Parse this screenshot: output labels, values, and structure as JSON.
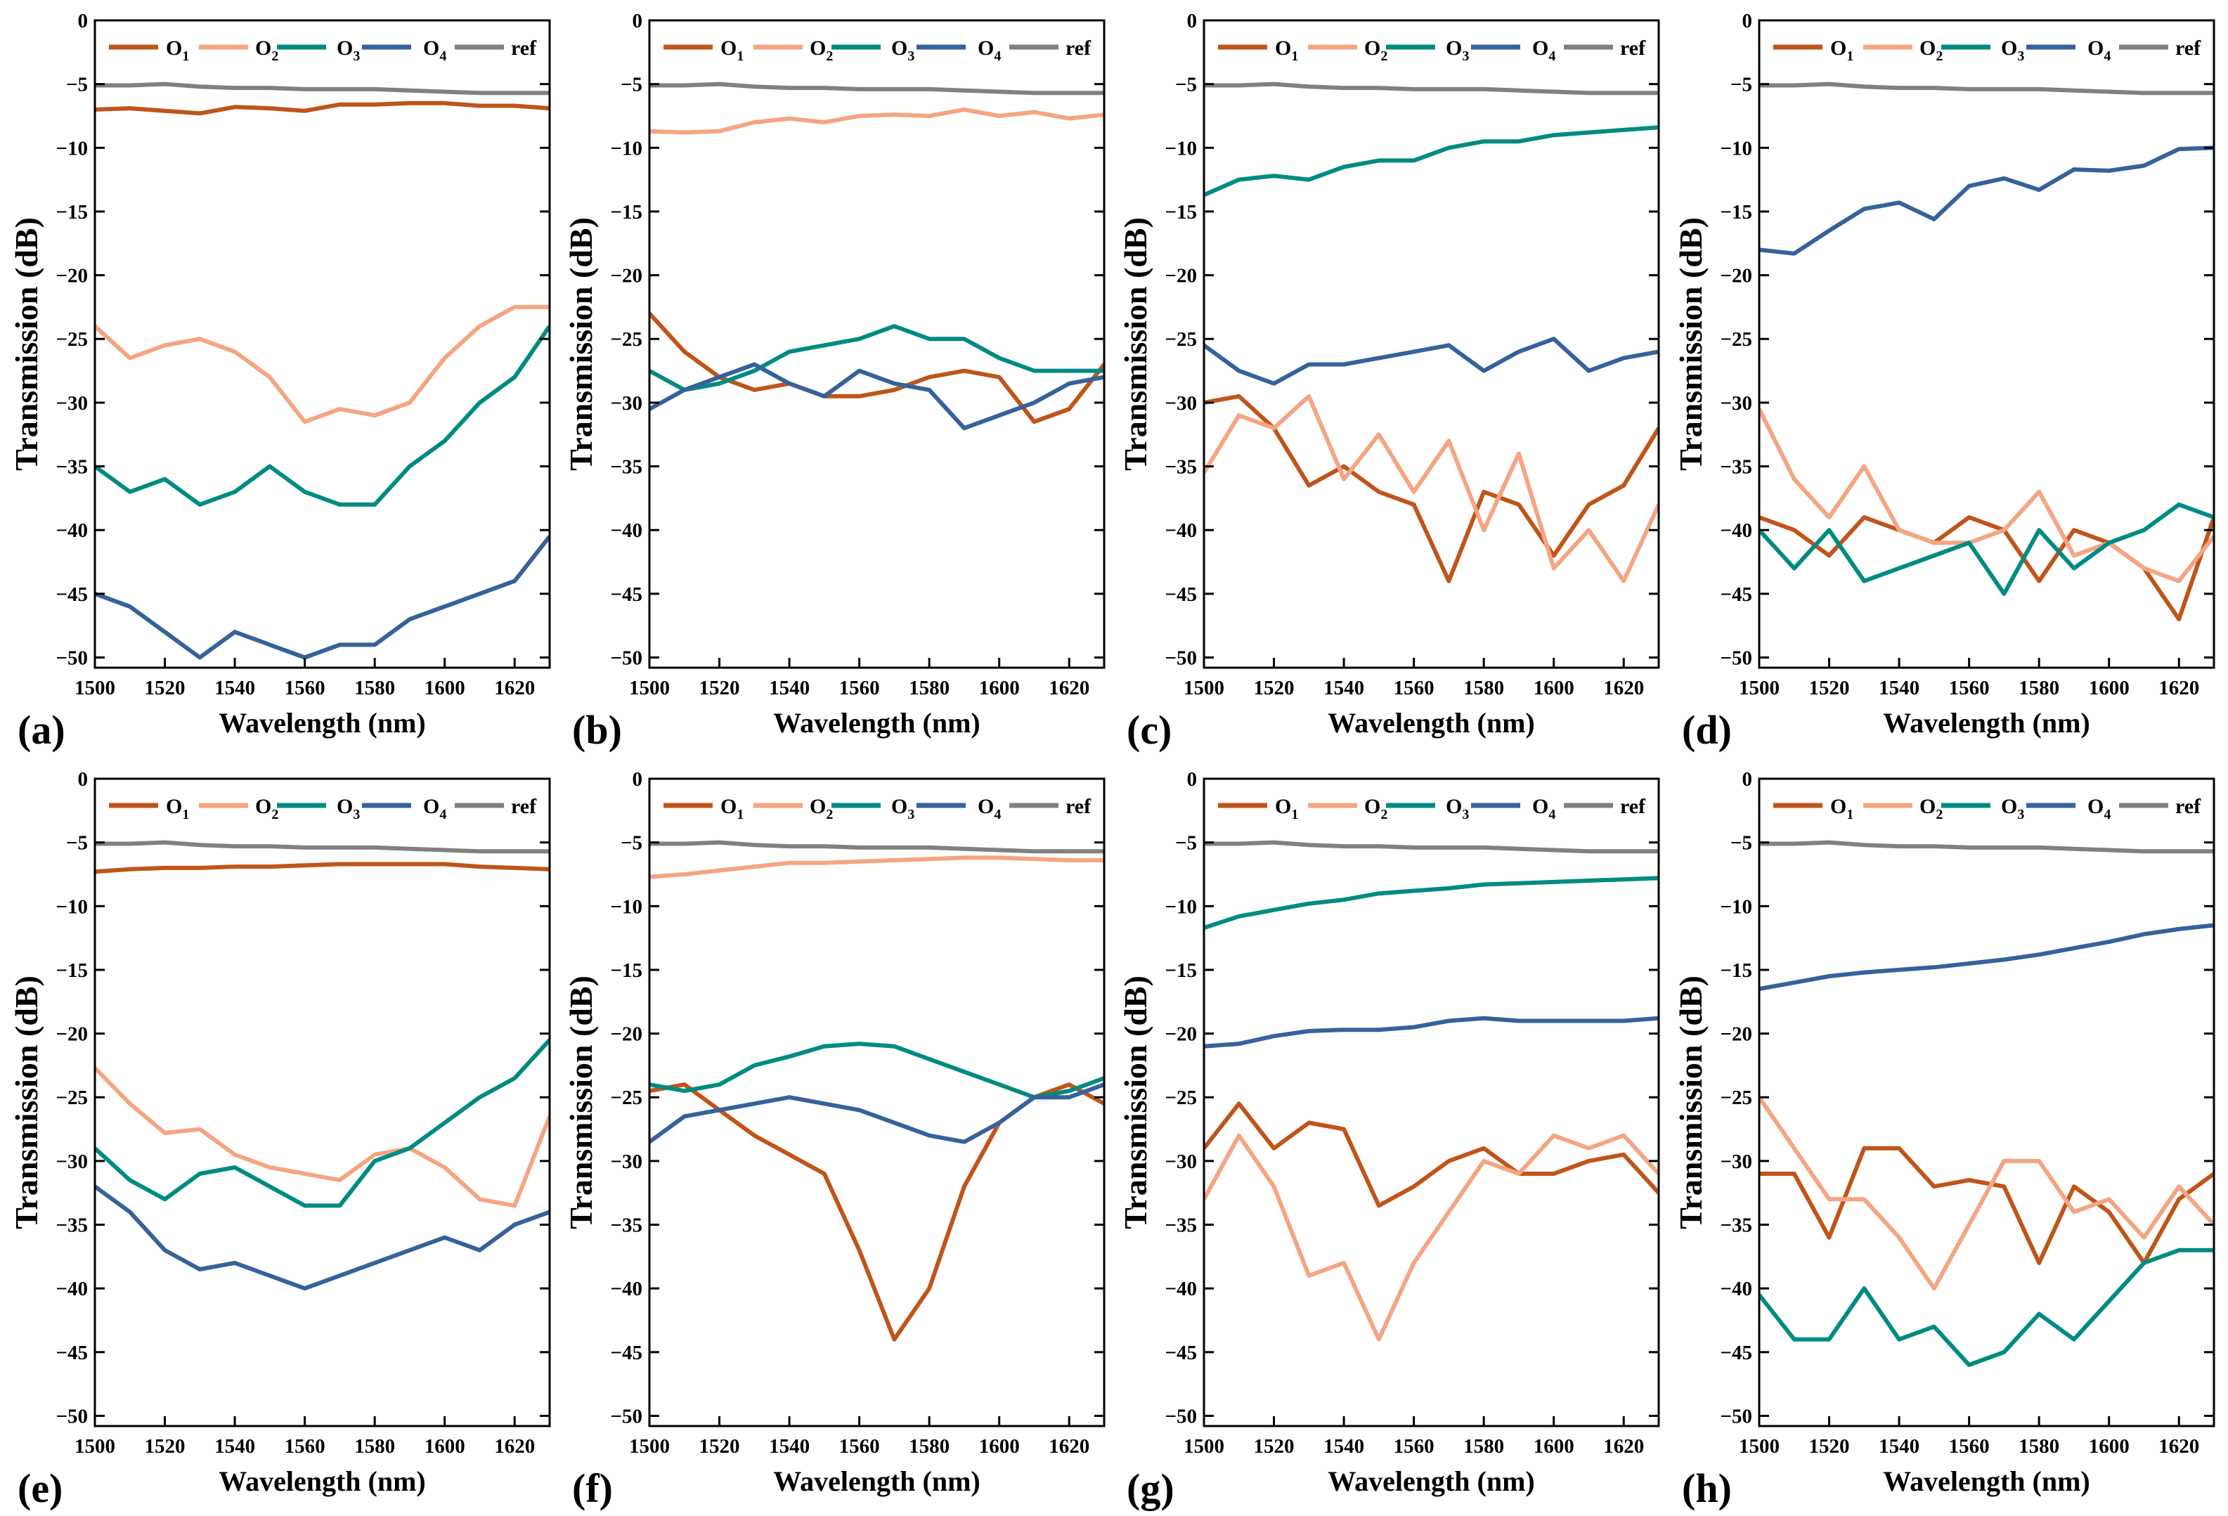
{
  "chart_data": {
    "type": "line",
    "layout": "2x4 grid",
    "shared": {
      "x": [
        1500,
        1510,
        1520,
        1530,
        1540,
        1550,
        1560,
        1570,
        1580,
        1590,
        1600,
        1610,
        1620,
        1630
      ],
      "xlabel": "Wavelength (nm)",
      "ylabel": "Transmission (dB)",
      "xlim": [
        1500,
        1630
      ],
      "ylim": [
        -50.8,
        0
      ],
      "xticks": [
        1500,
        1520,
        1540,
        1560,
        1580,
        1600,
        1620
      ],
      "yticks": [
        0,
        -5,
        -10,
        -15,
        -20,
        -25,
        -30,
        -35,
        -40,
        -45,
        -50
      ],
      "legend_placement": "top",
      "legend": [
        {
          "key": "O1",
          "base": "O",
          "sub": "1",
          "color": "#C0541A"
        },
        {
          "key": "O2",
          "base": "O",
          "sub": "2",
          "color": "#F4A582"
        },
        {
          "key": "O3",
          "base": "O",
          "sub": "3",
          "color": "#008B82"
        },
        {
          "key": "O4",
          "base": "O",
          "sub": "4",
          "color": "#35629A"
        },
        {
          "key": "ref",
          "base": "ref",
          "sub": "",
          "color": "#808080"
        }
      ],
      "ref": [
        -5.1,
        -5.1,
        -5.0,
        -5.2,
        -5.3,
        -5.3,
        -5.4,
        -5.4,
        -5.4,
        -5.5,
        -5.6,
        -5.7,
        -5.7,
        -5.7
      ]
    },
    "panels": [
      {
        "label": "(a)",
        "series": {
          "O1": [
            -7,
            -6.9,
            -7.1,
            -7.3,
            -6.8,
            -6.9,
            -7.1,
            -6.6,
            -6.6,
            -6.5,
            -6.5,
            -6.7,
            -6.7,
            -6.9
          ],
          "O2": [
            -24,
            -26.5,
            -25.5,
            -25,
            -26,
            -28,
            -31.5,
            -30.5,
            -31,
            -30,
            -26.5,
            -24,
            -22.5,
            -22.5
          ],
          "O3": [
            -35,
            -37,
            -36,
            -38,
            -37,
            -35,
            -37,
            -38,
            -38,
            -35,
            -33,
            -30,
            -28,
            -24
          ],
          "O4": [
            -45,
            -46,
            -48,
            -50,
            -48,
            -49,
            -50,
            -49,
            -49,
            -47,
            -46,
            -45,
            -44,
            -40.5
          ]
        }
      },
      {
        "label": "(b)",
        "series": {
          "O1": [
            -23,
            -26,
            -28,
            -29,
            -28.5,
            -29.5,
            -29.5,
            -29,
            -28,
            -27.5,
            -28,
            -31.5,
            -30.5,
            -27
          ],
          "O2": [
            -8.7,
            -8.8,
            -8.7,
            -8,
            -7.7,
            -8,
            -7.5,
            -7.4,
            -7.5,
            -7,
            -7.5,
            -7.2,
            -7.7,
            -7.4
          ],
          "O3": [
            -27.5,
            -29,
            -28.5,
            -27.5,
            -26,
            -25.5,
            -25,
            -24,
            -25,
            -25,
            -26.5,
            -27.5,
            -27.5,
            -27.5
          ],
          "O4": [
            -30.5,
            -29,
            -28,
            -27,
            -28.5,
            -29.5,
            -27.5,
            -28.5,
            -29,
            -32,
            -31,
            -30,
            -28.5,
            -28
          ]
        }
      },
      {
        "label": "(c)",
        "series": {
          "O1": [
            -30,
            -29.5,
            -32,
            -36.5,
            -35,
            -37,
            -38,
            -44,
            -37,
            -38,
            -42,
            -38,
            -36.5,
            -32
          ],
          "O2": [
            -35.5,
            -31,
            -32,
            -29.5,
            -36,
            -32.5,
            -37,
            -33,
            -40,
            -34,
            -43,
            -40,
            -44,
            -38
          ],
          "O3": [
            -13.7,
            -12.5,
            -12.2,
            -12.5,
            -11.5,
            -11,
            -11,
            -10,
            -9.5,
            -9.5,
            -9,
            -8.8,
            -8.6,
            -8.4
          ],
          "O4": [
            -25.5,
            -27.5,
            -28.5,
            -27,
            -27,
            -26.5,
            -26,
            -25.5,
            -27.5,
            -26,
            -25,
            -27.5,
            -26.5,
            -26
          ]
        }
      },
      {
        "label": "(d)",
        "series": {
          "O1": [
            -39,
            -40,
            -42,
            -39,
            -40,
            -41,
            -39,
            -40,
            -44,
            -40,
            -41,
            -43,
            -47,
            -39
          ],
          "O2": [
            -30.5,
            -36,
            -39,
            -35,
            -40,
            -41,
            -41,
            -40,
            -37,
            -42,
            -41,
            -43,
            -44,
            -40.5
          ],
          "O3": [
            -40,
            -43,
            -40,
            -44,
            -43,
            -42,
            -41,
            -45,
            -40,
            -43,
            -41,
            -40,
            -38,
            -39
          ],
          "O4": [
            -18,
            -18.3,
            -16.5,
            -14.8,
            -14.3,
            -15.6,
            -13,
            -12.4,
            -13.3,
            -11.7,
            -11.8,
            -11.4,
            -10.1,
            -10
          ]
        }
      },
      {
        "label": "(e)",
        "series": {
          "O1": [
            -7.3,
            -7.1,
            -7,
            -7,
            -6.9,
            -6.9,
            -6.8,
            -6.7,
            -6.7,
            -6.7,
            -6.7,
            -6.9,
            -7,
            -7.1
          ],
          "O2": [
            -22.7,
            -25.5,
            -27.8,
            -27.5,
            -29.5,
            -30.5,
            -31,
            -31.5,
            -29.5,
            -29,
            -30.5,
            -33,
            -33.5,
            -26.5
          ],
          "O3": [
            -29,
            -31.5,
            -33,
            -31,
            -30.5,
            -32,
            -33.5,
            -33.5,
            -30,
            -29,
            -27,
            -25,
            -23.5,
            -20.5
          ],
          "O4": [
            -32,
            -34,
            -37,
            -38.5,
            -38,
            -39,
            -40,
            -39,
            -38,
            -37,
            -36,
            -37,
            -35,
            -34
          ]
        }
      },
      {
        "label": "(f)",
        "series": {
          "O1": [
            -24.5,
            -24,
            -26,
            -28,
            -29.5,
            -31,
            -37,
            -44,
            -40,
            -32,
            -27,
            -25,
            -24,
            -25.5
          ],
          "O2": [
            -7.7,
            -7.5,
            -7.2,
            -6.9,
            -6.6,
            -6.6,
            -6.5,
            -6.4,
            -6.3,
            -6.2,
            -6.2,
            -6.3,
            -6.4,
            -6.4
          ],
          "O3": [
            -24,
            -24.5,
            -24,
            -22.5,
            -21.8,
            -21,
            -20.8,
            -21,
            -22,
            -23,
            -24,
            -25,
            -24.5,
            -23.5
          ],
          "O4": [
            -28.5,
            -26.5,
            -26,
            -25.5,
            -25,
            -25.5,
            -26,
            -27,
            -28,
            -28.5,
            -27,
            -25,
            -25,
            -24
          ]
        }
      },
      {
        "label": "(g)",
        "series": {
          "O1": [
            -29,
            -25.5,
            -29,
            -27,
            -27.5,
            -33.5,
            -32,
            -30,
            -29,
            -31,
            -31,
            -30,
            -29.5,
            -32.5
          ],
          "O2": [
            -33,
            -28,
            -32,
            -39,
            -38,
            -44,
            -38,
            -34,
            -30,
            -31,
            -28,
            -29,
            -28,
            -31
          ],
          "O3": [
            -11.7,
            -10.8,
            -10.3,
            -9.8,
            -9.5,
            -9,
            -8.8,
            -8.6,
            -8.3,
            -8.2,
            -8.1,
            -8,
            -7.9,
            -7.8
          ],
          "O4": [
            -21,
            -20.8,
            -20.2,
            -19.8,
            -19.7,
            -19.7,
            -19.5,
            -19,
            -18.8,
            -19,
            -19,
            -19,
            -19,
            -18.8
          ]
        }
      },
      {
        "label": "(h)",
        "series": {
          "O1": [
            -31,
            -31,
            -36,
            -29,
            -29,
            -32,
            -31.5,
            -32,
            -38,
            -32,
            -34,
            -38,
            -33,
            -31
          ],
          "O2": [
            -25,
            -29,
            -33,
            -33,
            -36,
            -40,
            -35,
            -30,
            -30,
            -34,
            -33,
            -36,
            -32,
            -35
          ],
          "O3": [
            -40.5,
            -44,
            -44,
            -40,
            -44,
            -43,
            -46,
            -45,
            -42,
            -44,
            -41,
            -38,
            -37,
            -37
          ],
          "O4": [
            -16.5,
            -16,
            -15.5,
            -15.2,
            -15,
            -14.8,
            -14.5,
            -14.2,
            -13.8,
            -13.3,
            -12.8,
            -12.2,
            -11.8,
            -11.5
          ]
        }
      }
    ]
  }
}
